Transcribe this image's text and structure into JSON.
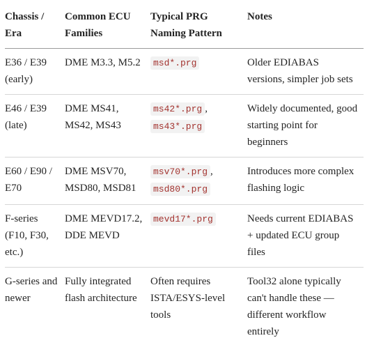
{
  "table": {
    "header": [
      "Chassis / Era",
      "Common ECU Families",
      "Typical PRG Naming Pattern",
      "Notes"
    ],
    "rows": [
      [
        "E36 / E39 (early)",
        "DME M3.3, M5.2",
        [
          {
            "code": "msd*.prg"
          }
        ],
        "Older EDIABAS versions, simpler job sets"
      ],
      [
        "E46 / E39 (late)",
        "DME MS41, MS42, MS43",
        [
          {
            "code": "ms42*.prg"
          },
          {
            "text": ","
          },
          {
            "code": "ms43*.prg"
          }
        ],
        "Widely documented, good starting point for beginners"
      ],
      [
        "E60 / E90 / E70",
        "DME MSV70, MSD80, MSD81",
        [
          {
            "code": "msv70*.prg"
          },
          {
            "text": ","
          },
          {
            "code": "msd80*.prg"
          }
        ],
        "Introduces more complex flashing logic"
      ],
      [
        "F-series (F10, F30, etc.)",
        "DME MEVD17.2, DDE MEVD",
        [
          {
            "code": "mevd17*.prg"
          }
        ],
        "Needs current EDIABAS + updated ECU group files"
      ],
      [
        "G-series and newer",
        "Fully integrated flash architecture",
        "Often requires ISTA/ESYS-level tools",
        "Tool32 alone typically can't handle these — different workflow entirely"
      ]
    ]
  }
}
